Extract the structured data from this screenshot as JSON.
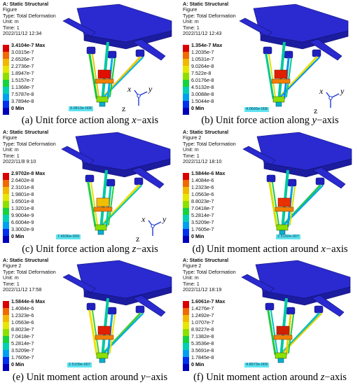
{
  "panels": [
    {
      "id": "a",
      "header": [
        "A: Static Structural",
        "Figure",
        "Type: Total Deformation",
        "Unit: m",
        "Time: 1",
        "2022/11/12 12:34"
      ],
      "legend": [
        "3.4104e-7 Max",
        "3.0315e-7",
        "2.6526e-7",
        "2.2736e-7",
        "1.8947e-7",
        "1.5157e-7",
        "1.1368e-7",
        "7.5787e-8",
        "3.7894e-8",
        "0 Min"
      ],
      "probe": "9.0813e-008",
      "caption_prefix": "(a) Unit force action along ",
      "caption_axis": "x",
      "caption_suffix": "−axis"
    },
    {
      "id": "b",
      "header": [
        "A: Static Structural",
        "Figure",
        "Type: Total Deformation",
        "Unit: m",
        "Time: 1",
        "2022/11/12 12:43"
      ],
      "legend": [
        "1.354e-7 Max",
        "1.2035e-7",
        "1.0531e-7",
        "9.0264e-8",
        "7.522e-8",
        "6.0176e-8",
        "4.5132e-8",
        "3.0088e-8",
        "1.5044e-8",
        "0 Min"
      ],
      "probe": "4.0666e-008",
      "caption_prefix": "(b) Unit force action along ",
      "caption_axis": "y",
      "caption_suffix": "−axis"
    },
    {
      "id": "c",
      "header": [
        "A: Static Structural",
        "Figure",
        "Type: Total Deformation",
        "Unit: m",
        "Time: 1",
        "2022/11/8 9:10"
      ],
      "legend": [
        "2.9702e-8 Max",
        "2.6402e-8",
        "2.3101e-8",
        "1.9801e-8",
        "1.6501e-8",
        "1.3201e-8",
        "9.9004e-9",
        "6.6004e-9",
        "3.3002e-9",
        "0 Min"
      ],
      "probe": "7.4936e-009",
      "caption_prefix": "(c) Unit force action along ",
      "caption_axis": "z",
      "caption_suffix": "−axis"
    },
    {
      "id": "d",
      "header": [
        "A: Static Structural",
        "Figure 2",
        "Type: Total Deformation",
        "Unit: m",
        "Time: 1",
        "2022/11/12 18:10"
      ],
      "legend": [
        "1.5844e-6 Max",
        "1.4084e-6",
        "1.2323e-6",
        "1.0563e-6",
        "8.8023e-7",
        "7.0418e-7",
        "5.2814e-7",
        "3.5209e-7",
        "1.7605e-7",
        "0 Min"
      ],
      "probe": "2.5192e-007",
      "caption_prefix": "(d) Unit moment action around ",
      "caption_axis": "x",
      "caption_suffix": "−axis"
    },
    {
      "id": "e",
      "header": [
        "A: Static Structural",
        "Figure 2",
        "Type: Total Deformation",
        "Unit: m",
        "Time: 1",
        "2022/11/12 17:58"
      ],
      "legend": [
        "1.5844e-6 Max",
        "1.4084e-6",
        "1.2323e-6",
        "1.0563e-6",
        "8.8023e-7",
        "7.0418e-7",
        "5.2814e-7",
        "3.5209e-7",
        "1.7605e-7",
        "0 Min"
      ],
      "probe": "2.5109e-007",
      "caption_prefix": "(e) Unit moment action around ",
      "caption_axis": "y",
      "caption_suffix": "−axis"
    },
    {
      "id": "f",
      "header": [
        "A: Static Structural",
        "Figure 2",
        "Type: Total Deformation",
        "Unit: m",
        "Time: 1",
        "2022/11/12 18:19"
      ],
      "legend": [
        "1.6061e-7 Max",
        "1.4276e-7",
        "1.2492e-7",
        "1.0707e-7",
        "8.9227e-8",
        "7.1382e-8",
        "5.3536e-8",
        "3.5691e-8",
        "1.7845e-8",
        "0 Min"
      ],
      "probe": "4.8973e-009",
      "caption_prefix": "(f) Unit moment action around ",
      "caption_axis": "z",
      "caption_suffix": "−axis"
    }
  ],
  "legend_colors": [
    "#d90000",
    "#f06a00",
    "#f2b700",
    "#e6e600",
    "#8ce000",
    "#18d23c",
    "#00d0b4",
    "#00a0f0",
    "#0030f0",
    "#0000b8"
  ],
  "axis_labels": {
    "x": "x",
    "y": "y",
    "z": "z"
  },
  "structure_color": "#2a2ad0"
}
